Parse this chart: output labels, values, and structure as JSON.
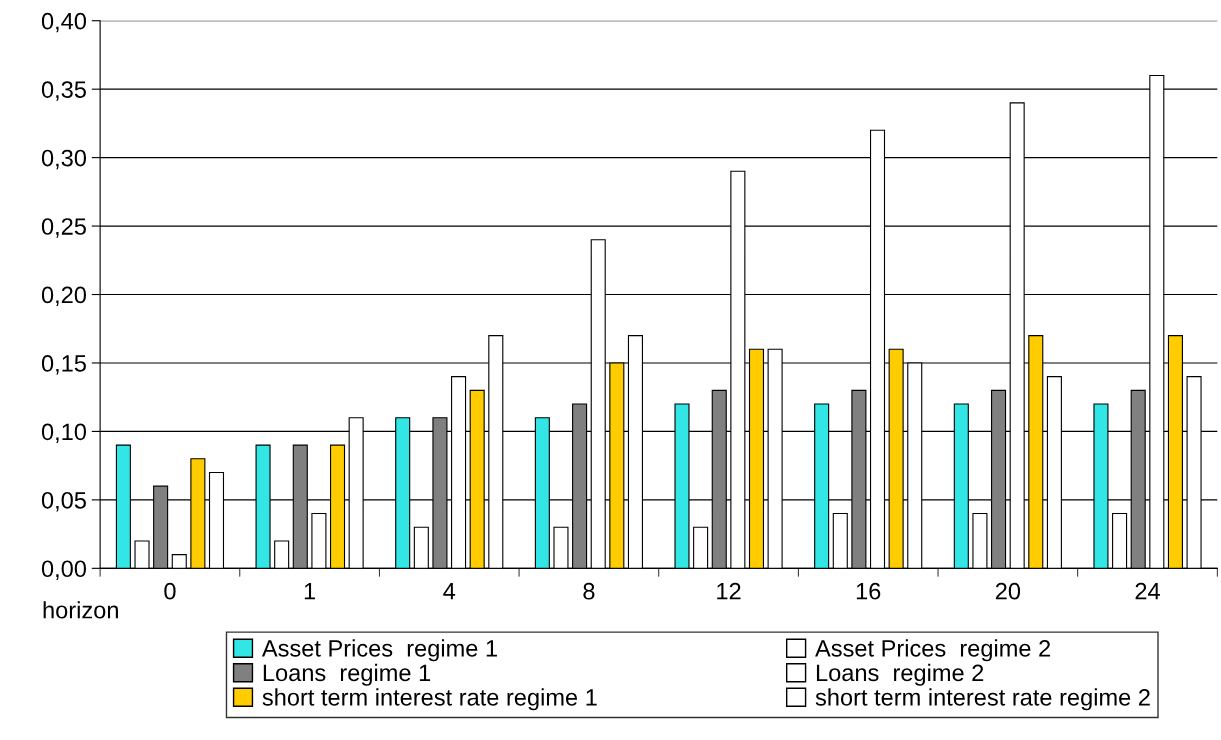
{
  "chart_data": {
    "type": "bar",
    "xlabel": "horizon",
    "categories": [
      "0",
      "1",
      "4",
      "8",
      "12",
      "16",
      "20",
      "24"
    ],
    "series": [
      {
        "name": "Asset Prices  regime 1",
        "color": "#33e6e6",
        "values": [
          0.09,
          0.09,
          0.11,
          0.11,
          0.12,
          0.12,
          0.12,
          0.12
        ]
      },
      {
        "name": "Asset Prices  regime 2",
        "color": "#ffffff",
        "values": [
          0.02,
          0.02,
          0.03,
          0.03,
          0.03,
          0.04,
          0.04,
          0.04
        ]
      },
      {
        "name": "Loans  regime 1",
        "color": "#808080",
        "values": [
          0.06,
          0.09,
          0.11,
          0.12,
          0.13,
          0.13,
          0.13,
          0.13
        ]
      },
      {
        "name": "Loans  regime 2",
        "color": "#ffffff",
        "values": [
          0.01,
          0.04,
          0.14,
          0.24,
          0.29,
          0.32,
          0.34,
          0.36
        ]
      },
      {
        "name": "short term interest rate regime 1",
        "color": "#ffcc00",
        "values": [
          0.08,
          0.09,
          0.13,
          0.15,
          0.16,
          0.16,
          0.17,
          0.17
        ]
      },
      {
        "name": "short term interest rate regime 2",
        "color": "#ffffff",
        "values": [
          0.07,
          0.11,
          0.17,
          0.17,
          0.16,
          0.15,
          0.14,
          0.14
        ]
      }
    ],
    "ylim": [
      0,
      0.4
    ],
    "yticks": [
      {
        "value": 0,
        "label": "0,00"
      },
      {
        "value": 0.05,
        "label": "0,05"
      },
      {
        "value": 0.1,
        "label": "0,10"
      },
      {
        "value": 0.15,
        "label": "0,15"
      },
      {
        "value": 0.2,
        "label": "0,20"
      },
      {
        "value": 0.25,
        "label": "0,25"
      },
      {
        "value": 0.3,
        "label": "0,30"
      },
      {
        "value": 0.35,
        "label": "0,35"
      },
      {
        "value": 0.4,
        "label": "0,40"
      }
    ],
    "grid": "y",
    "legend": "bottom"
  }
}
